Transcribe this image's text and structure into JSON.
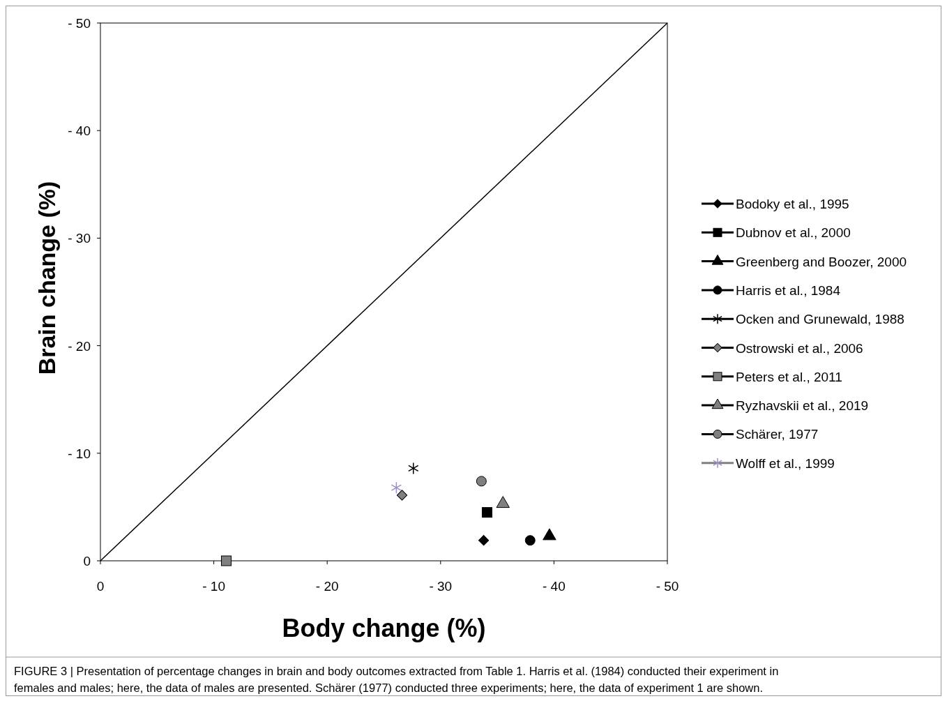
{
  "chart_data": {
    "type": "scatter",
    "xlabel": "Body change (%)",
    "ylabel": "Brain change (%)",
    "xlim": [
      0,
      -50
    ],
    "ylim": [
      0,
      -50
    ],
    "xticks": [
      0,
      {
        "value": -10,
        "label": "- 10"
      },
      {
        "value": -20,
        "label": "- 20"
      },
      {
        "value": -30,
        "label": "- 30"
      },
      {
        "value": -40,
        "label": "- 40"
      },
      {
        "value": -50,
        "label": "- 50"
      }
    ],
    "yticks": [
      0,
      {
        "value": -10,
        "label": "- 10"
      },
      {
        "value": -20,
        "label": "- 20"
      },
      {
        "value": -30,
        "label": "- 30"
      },
      {
        "value": -40,
        "label": "- 40"
      },
      {
        "value": -50,
        "label": "- 50"
      }
    ],
    "grid": false,
    "legend": "right",
    "series": [
      {
        "type": "line",
        "color": "#000000",
        "x": [
          0,
          -50
        ],
        "values": [
          0,
          -50
        ],
        "marker": "none"
      },
      {
        "name": "Bodoky et al., 1995",
        "color": "#000000",
        "marker": "diamond",
        "x": [
          -33.8
        ],
        "values": [
          -1.9
        ]
      },
      {
        "name": "Dubnov et al., 2000",
        "color": "#000000",
        "marker": "square",
        "x": [
          -34.1
        ],
        "values": [
          -4.5
        ]
      },
      {
        "name": "Greenberg and Boozer, 2000",
        "color": "#000000",
        "marker": "triangle",
        "x": [
          -39.6
        ],
        "values": [
          -2.3
        ]
      },
      {
        "name": "Harris et al., 1984",
        "color": "#000000",
        "marker": "circle",
        "x": [
          -37.9
        ],
        "values": [
          -1.9
        ]
      },
      {
        "name": "Ocken and Grunewald, 1988",
        "color": "#000000",
        "marker": "cross",
        "x": [
          -27.6
        ],
        "values": [
          -8.6
        ]
      },
      {
        "name": "Ostrowski et al., 2006",
        "color": "#808080",
        "marker": "diamond",
        "x": [
          -26.6
        ],
        "values": [
          -6.1
        ]
      },
      {
        "name": "Peters et al., 2011",
        "color": "#808080",
        "marker": "square",
        "x": [
          -11.1
        ],
        "values": [
          0
        ]
      },
      {
        "name": "Ryzhavskii et al., 2019",
        "color": "#808080",
        "marker": "triangle",
        "x": [
          -35.5
        ],
        "values": [
          -5.3
        ]
      },
      {
        "name": "Schärer, 1977",
        "color": "#808080",
        "marker": "circle",
        "x": [
          -33.6
        ],
        "values": [
          -7.4
        ]
      },
      {
        "name": "Wolff et al., 1999",
        "color": "#9e8fc4",
        "marker": "cross",
        "x": [
          -26.1
        ],
        "values": [
          -6.8
        ]
      }
    ],
    "annotations": [
      "FIGURE 3 | Presentation of percentage changes in brain and body outcomes extracted from Table 1. Harris et al. (1984) conducted their experiment in females and males; here, the data of males are presented. Schärer (1977) conducted three experiments; here, the data of experiment 1 are shown."
    ]
  }
}
